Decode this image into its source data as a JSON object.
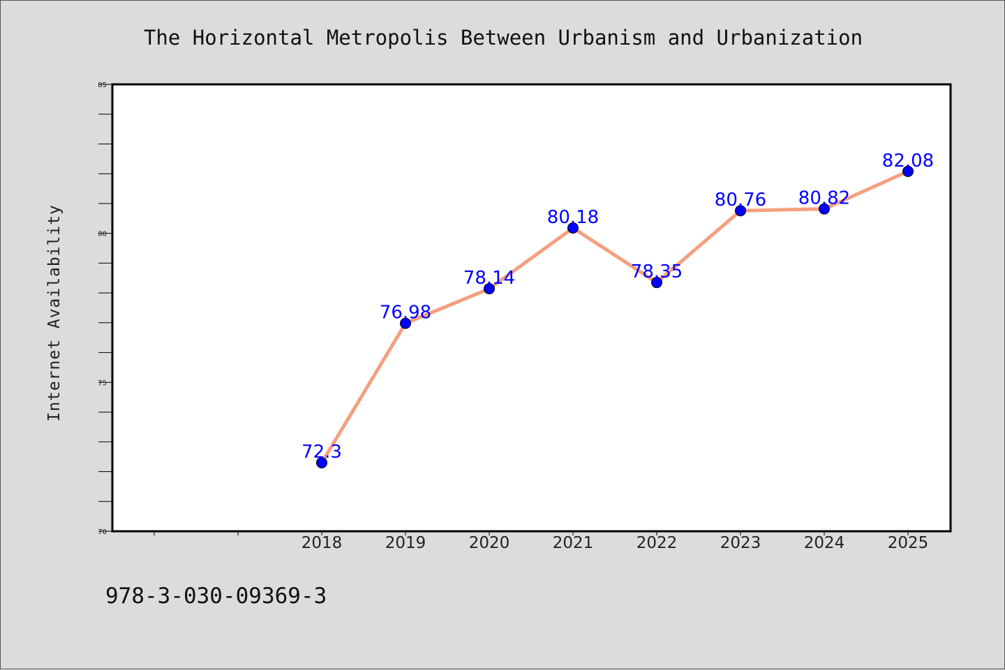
{
  "chart_data": {
    "type": "line",
    "title": "The Horizontal Metropolis Between Urbanism and Urbanization",
    "xlabel": "",
    "ylabel": "Internet Availability",
    "categories": [
      "2018",
      "2019",
      "2020",
      "2021",
      "2022",
      "2023",
      "2024",
      "2025"
    ],
    "series": [
      {
        "values": [
          72.3,
          76.98,
          78.14,
          80.18,
          78.35,
          80.76,
          80.82,
          82.08
        ]
      }
    ],
    "data_labels": [
      "72.3",
      "76.98",
      "78.14",
      "80.18",
      "78.35",
      "80.76",
      "80.82",
      "82.08"
    ],
    "ylim": [
      70,
      85
    ],
    "yticks": [
      70,
      75,
      80,
      85
    ],
    "ytick_labels": [
      "70",
      "75",
      "80",
      "85"
    ],
    "grid": false,
    "legend": "none",
    "colors": {
      "line": "#f4a07f",
      "marker": "#0000ff",
      "label": "#0000ff"
    }
  },
  "footnote": "978-3-030-09369-3"
}
